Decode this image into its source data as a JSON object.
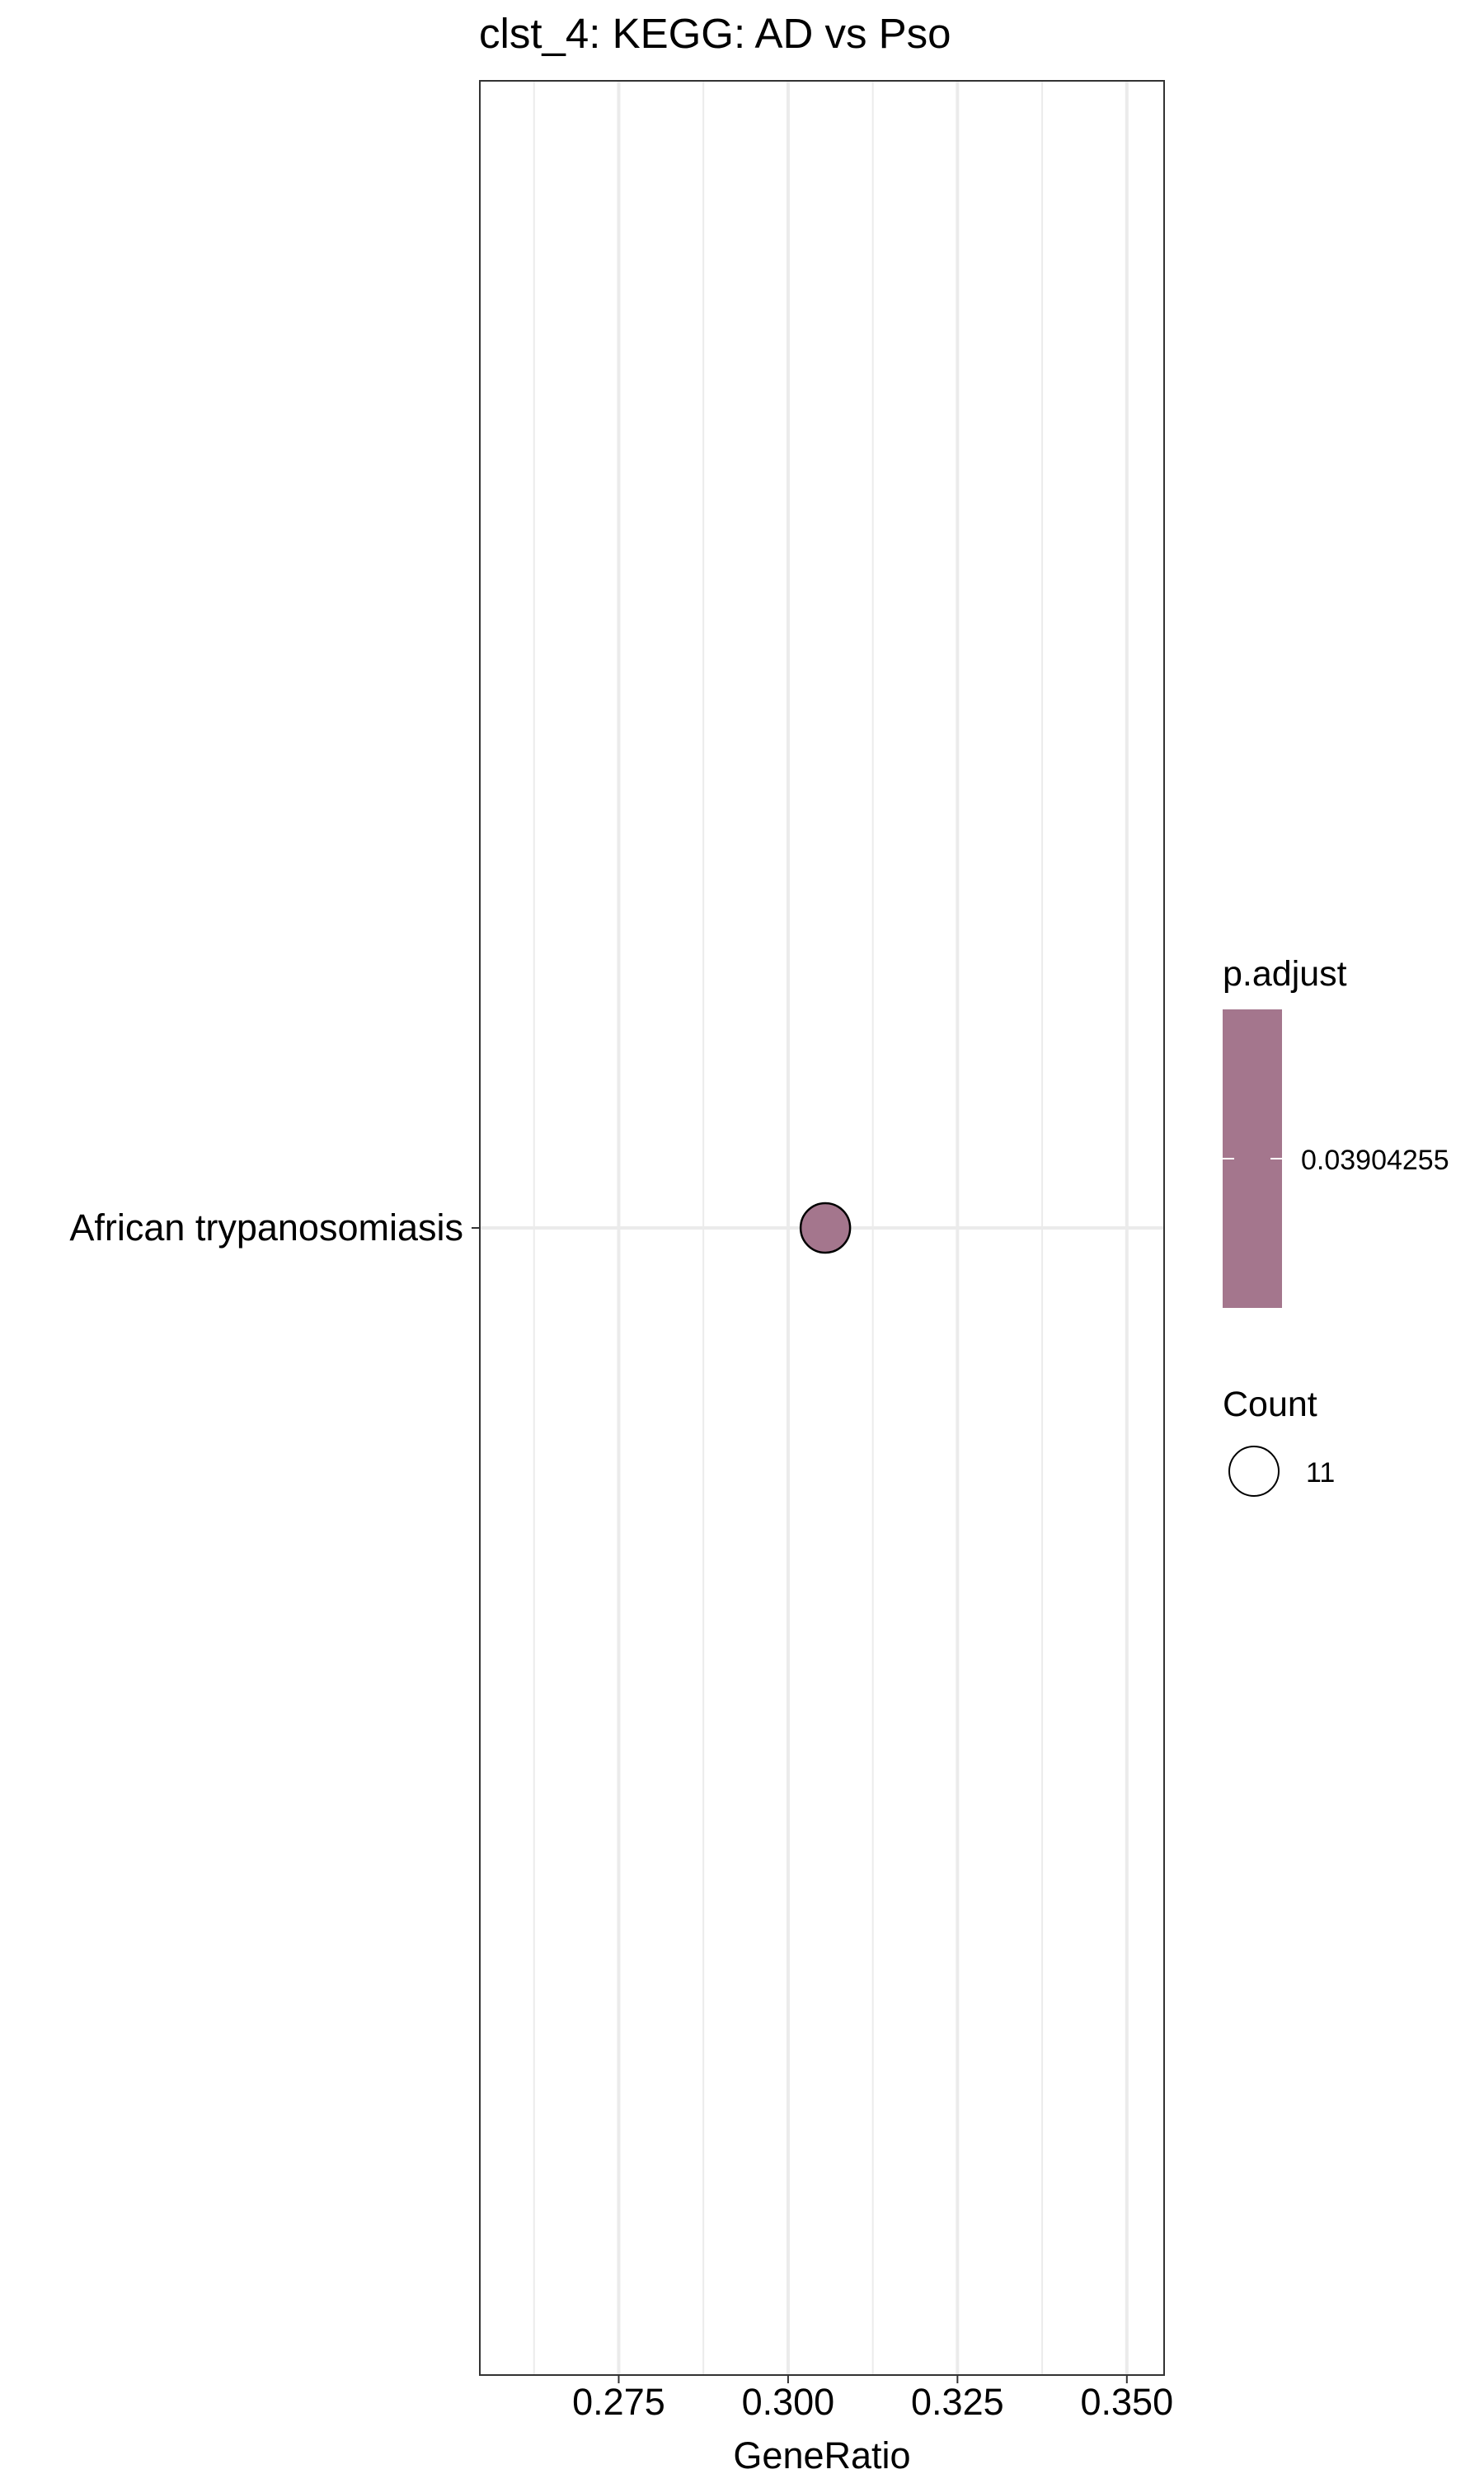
{
  "chart_data": {
    "type": "scatter",
    "title": "clst_4: KEGG: AD vs Pso",
    "xlabel": "GeneRatio",
    "ylabel": "",
    "xlim": [
      0.2545,
      0.3555
    ],
    "x_ticks": [
      0.275,
      0.3,
      0.325,
      0.35
    ],
    "x_tick_labels": [
      "0.275",
      "0.300",
      "0.325",
      "0.350"
    ],
    "x_minor_ticks": [
      0.2625,
      0.2875,
      0.3125,
      0.3375
    ],
    "categories": [
      "African trypanosomiasis"
    ],
    "points": [
      {
        "category": "African trypanosomiasis",
        "x": 0.3055,
        "count": 11,
        "p_adjust": 0.03904255,
        "color": "#a4768d"
      }
    ],
    "grid": true,
    "legend_placement": "right",
    "legends": {
      "color": {
        "title": "p.adjust",
        "tick_label": "0.03904255",
        "color": "#a4768d"
      },
      "size": {
        "title": "Count",
        "label": "11"
      }
    }
  }
}
